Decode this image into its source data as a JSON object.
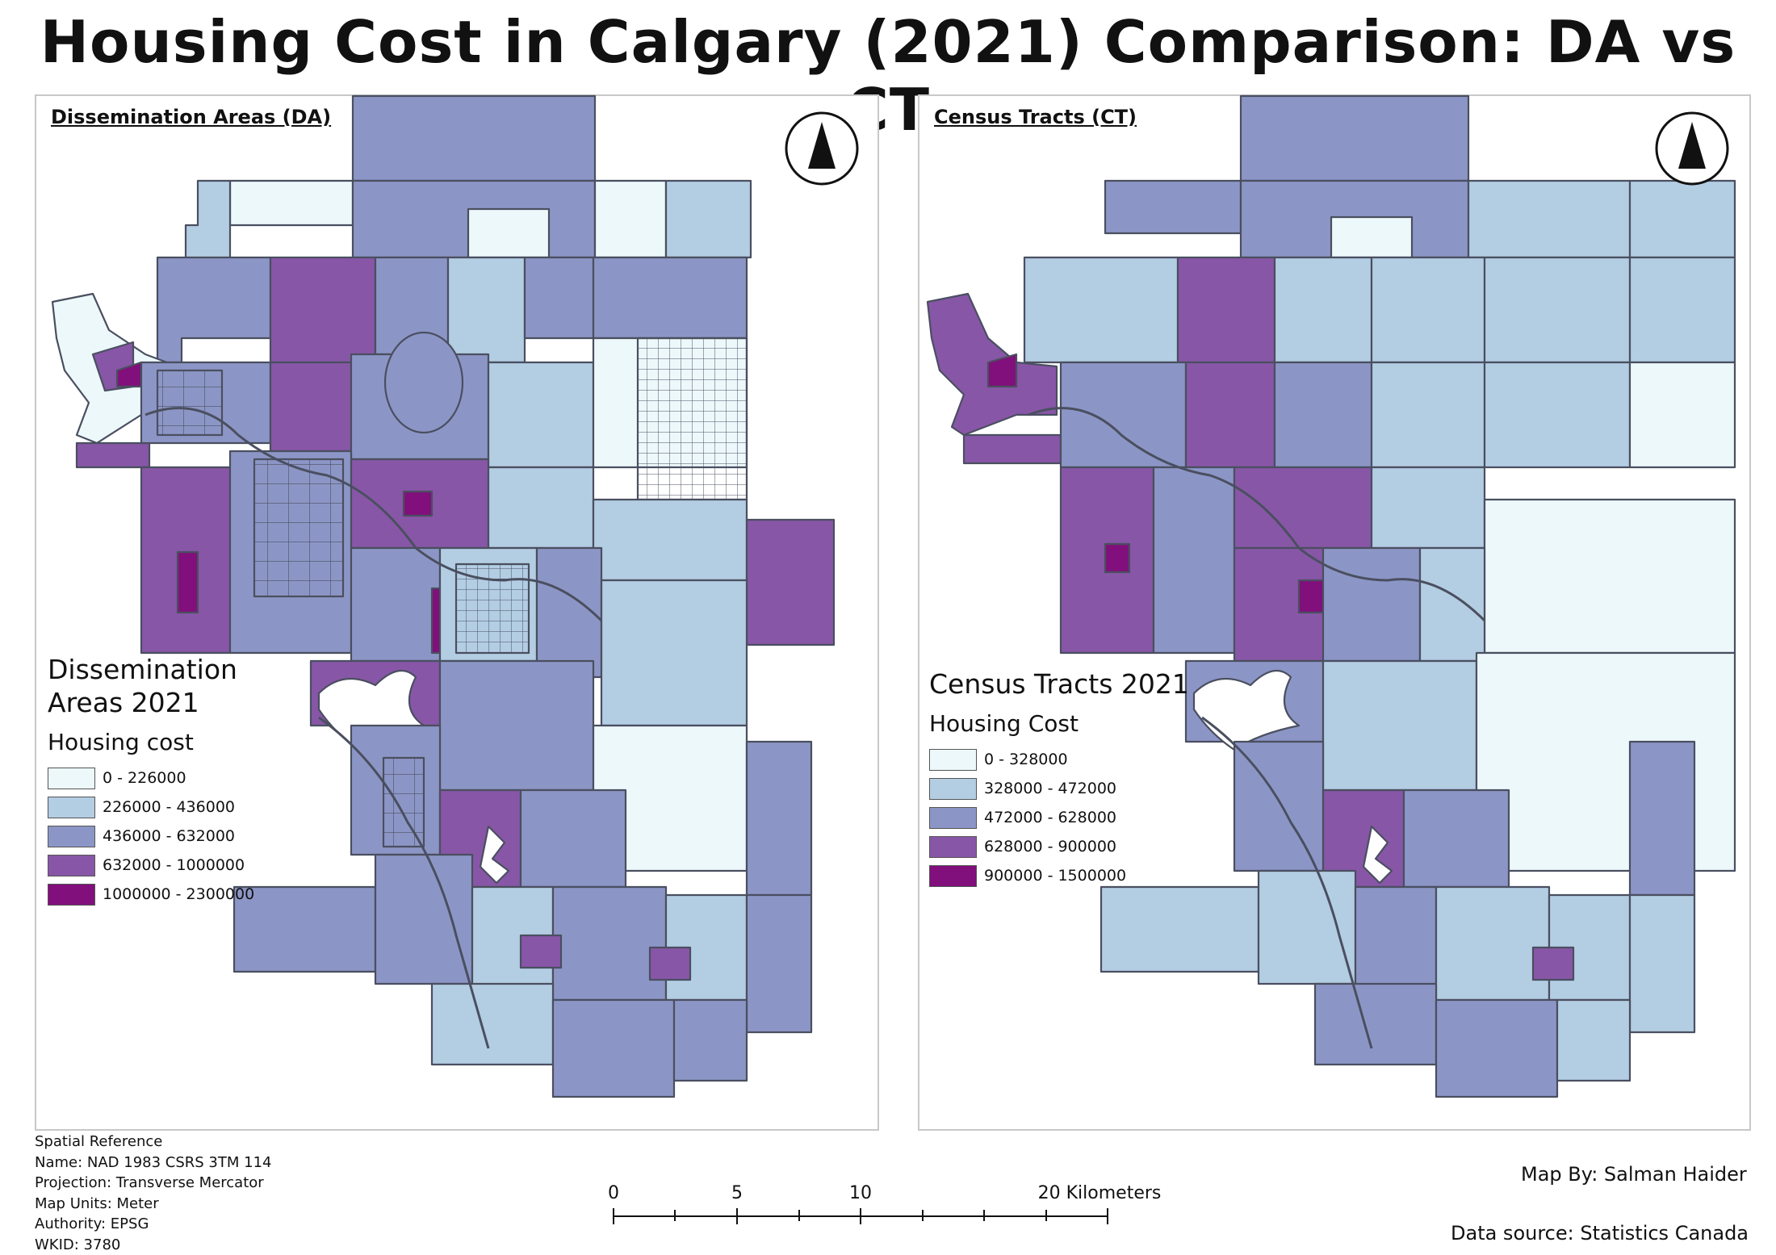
{
  "title": "Housing Cost in Calgary (2021) Comparison: DA vs CT",
  "panels": {
    "da": {
      "heading": "Dissemination Areas (DA)",
      "legend_title_line1": "Dissemination",
      "legend_title_line2": "Areas 2021",
      "legend_subtitle": "Housing cost",
      "legend": [
        {
          "label": "0 - 226000",
          "color": "#edf8fb"
        },
        {
          "label": "226000 - 436000",
          "color": "#b3cde3"
        },
        {
          "label": "436000 - 632000",
          "color": "#8c96c6"
        },
        {
          "label": "632000 - 1000000",
          "color": "#8856a7"
        },
        {
          "label": "1000000 - 2300000",
          "color": "#810f7c"
        }
      ]
    },
    "ct": {
      "heading": "Census Tracts (CT)",
      "legend_title": "Census Tracts 2021",
      "legend_subtitle": "Housing Cost",
      "legend": [
        {
          "label": "0 - 328000",
          "color": "#edf8fb"
        },
        {
          "label": "328000 - 472000",
          "color": "#b3cde3"
        },
        {
          "label": "472000 - 628000",
          "color": "#8c96c6"
        },
        {
          "label": "628000 - 900000",
          "color": "#8856a7"
        },
        {
          "label": "900000 - 1500000",
          "color": "#810f7c"
        }
      ]
    }
  },
  "spatial_reference": {
    "heading": "Spatial Reference",
    "name": "Name: NAD 1983 CSRS 3TM 114",
    "projection": "Projection: Transverse Mercator",
    "map_units": "Map Units: Meter",
    "authority": "Authority: EPSG",
    "wkid": "WKID: 3780"
  },
  "scalebar": {
    "ticks": [
      "0",
      "5",
      "10",
      "20 Kilometers"
    ]
  },
  "credits": {
    "map_by": "Map By: Salman Haider",
    "data_source": "Data source: Statistics Canada"
  },
  "colors": {
    "boundary": "#4a4f60",
    "panel_border": "#c8c8c8",
    "water": "#ffffff"
  },
  "icons": {
    "north_arrow": "north-arrow-icon"
  }
}
